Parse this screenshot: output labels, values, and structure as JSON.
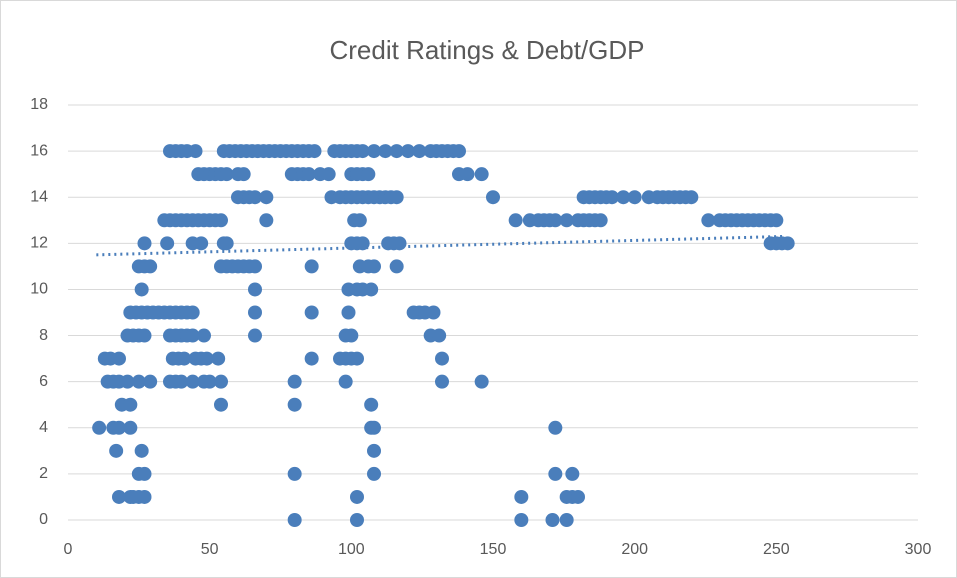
{
  "chart_data": {
    "type": "scatter",
    "title": "Credit Ratings & Debt/GDP",
    "color": "#4a7ebb",
    "grid": true,
    "xlim": [
      0,
      300
    ],
    "xticks": [
      0,
      50,
      100,
      150,
      200,
      250,
      300
    ],
    "ylim": [
      0,
      18
    ],
    "yticks": [
      0,
      2,
      4,
      6,
      8,
      10,
      12,
      14,
      16,
      18
    ],
    "trendline": {
      "x": [
        10,
        253
      ],
      "y": [
        11.5,
        12.3
      ]
    },
    "x": [
      36,
      38,
      40,
      42,
      45,
      55,
      57,
      59,
      61,
      63,
      65,
      67,
      69,
      71,
      73,
      75,
      77,
      79,
      81,
      83,
      85,
      87,
      94,
      96,
      98,
      100,
      102,
      104,
      108,
      112,
      116,
      120,
      124,
      128,
      130,
      132,
      134,
      136,
      138,
      46,
      48,
      50,
      52,
      54,
      56,
      60,
      62,
      79,
      81,
      83,
      85,
      89,
      92,
      100,
      102,
      104,
      106,
      138,
      141,
      146,
      60,
      62,
      64,
      66,
      70,
      93,
      96,
      98,
      100,
      102,
      104,
      106,
      108,
      110,
      112,
      114,
      116,
      150,
      182,
      184,
      186,
      188,
      190,
      192,
      196,
      200,
      205,
      208,
      210,
      212,
      214,
      216,
      218,
      220,
      34,
      36,
      38,
      40,
      42,
      44,
      46,
      48,
      50,
      52,
      54,
      70,
      101,
      103,
      158,
      163,
      166,
      168,
      170,
      172,
      176,
      180,
      182,
      184,
      186,
      188,
      226,
      230,
      232,
      234,
      236,
      238,
      240,
      242,
      244,
      246,
      248,
      250,
      27,
      35,
      44,
      47,
      55,
      56,
      100,
      102,
      104,
      113,
      115,
      117,
      248,
      250,
      252,
      254,
      25,
      27,
      29,
      54,
      56,
      58,
      60,
      62,
      64,
      66,
      86,
      103,
      106,
      108,
      116,
      26,
      66,
      99,
      102,
      104,
      107,
      22,
      24,
      26,
      28,
      30,
      32,
      34,
      36,
      38,
      40,
      42,
      44,
      66,
      86,
      99,
      122,
      124,
      126,
      129,
      21,
      23,
      25,
      27,
      36,
      38,
      40,
      42,
      44,
      48,
      66,
      98,
      100,
      128,
      131,
      13,
      15,
      18,
      37,
      39,
      41,
      45,
      47,
      49,
      53,
      86,
      96,
      98,
      100,
      102,
      132,
      14,
      16,
      18,
      21,
      25,
      29,
      36,
      38,
      40,
      44,
      48,
      50,
      54,
      80,
      98,
      132,
      146,
      19,
      22,
      54,
      80,
      107,
      11,
      16,
      18,
      22,
      107,
      108,
      172,
      17,
      26,
      108,
      25,
      27,
      80,
      108,
      172,
      178,
      18,
      22,
      23,
      25,
      27,
      102,
      160,
      176,
      178,
      180,
      80,
      102,
      160,
      171,
      176
    ],
    "values": [
      16,
      16,
      16,
      16,
      16,
      16,
      16,
      16,
      16,
      16,
      16,
      16,
      16,
      16,
      16,
      16,
      16,
      16,
      16,
      16,
      16,
      16,
      16,
      16,
      16,
      16,
      16,
      16,
      16,
      16,
      16,
      16,
      16,
      16,
      16,
      16,
      16,
      16,
      16,
      15,
      15,
      15,
      15,
      15,
      15,
      15,
      15,
      15,
      15,
      15,
      15,
      15,
      15,
      15,
      15,
      15,
      15,
      15,
      15,
      15,
      14,
      14,
      14,
      14,
      14,
      14,
      14,
      14,
      14,
      14,
      14,
      14,
      14,
      14,
      14,
      14,
      14,
      14,
      14,
      14,
      14,
      14,
      14,
      14,
      14,
      14,
      14,
      14,
      14,
      14,
      14,
      14,
      14,
      14,
      13,
      13,
      13,
      13,
      13,
      13,
      13,
      13,
      13,
      13,
      13,
      13,
      13,
      13,
      13,
      13,
      13,
      13,
      13,
      13,
      13,
      13,
      13,
      13,
      13,
      13,
      13,
      13,
      13,
      13,
      13,
      13,
      13,
      13,
      13,
      13,
      13,
      13,
      12,
      12,
      12,
      12,
      12,
      12,
      12,
      12,
      12,
      12,
      12,
      12,
      12,
      12,
      12,
      12,
      11,
      11,
      11,
      11,
      11,
      11,
      11,
      11,
      11,
      11,
      11,
      11,
      11,
      11,
      11,
      10,
      10,
      10,
      10,
      10,
      10,
      9,
      9,
      9,
      9,
      9,
      9,
      9,
      9,
      9,
      9,
      9,
      9,
      9,
      9,
      9,
      9,
      9,
      9,
      9,
      8,
      8,
      8,
      8,
      8,
      8,
      8,
      8,
      8,
      8,
      8,
      8,
      8,
      8,
      8,
      7,
      7,
      7,
      7,
      7,
      7,
      7,
      7,
      7,
      7,
      7,
      7,
      7,
      7,
      7,
      7,
      6,
      6,
      6,
      6,
      6,
      6,
      6,
      6,
      6,
      6,
      6,
      6,
      6,
      6,
      6,
      6,
      6,
      5,
      5,
      5,
      5,
      5,
      4,
      4,
      4,
      4,
      4,
      4,
      4,
      3,
      3,
      3,
      2,
      2,
      2,
      2,
      2,
      2,
      1,
      1,
      1,
      1,
      1,
      1,
      1,
      1,
      1,
      1,
      0,
      0,
      0,
      0,
      0
    ]
  }
}
